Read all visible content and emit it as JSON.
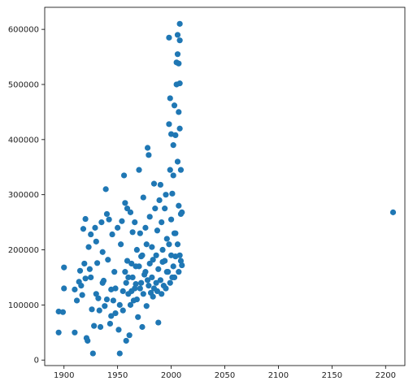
{
  "chart_data": {
    "type": "scatter",
    "title": "",
    "xlabel": "",
    "ylabel": "",
    "xlim": [
      1882,
      2218
    ],
    "ylim": [
      -10000,
      640000
    ],
    "grid": false,
    "legend": null,
    "x_ticks": [
      1900,
      1950,
      2000,
      2050,
      2100,
      2150,
      2200
    ],
    "x_tick_labels": [
      "1900",
      "1950",
      "2000",
      "2050",
      "2100",
      "2150",
      "2200"
    ],
    "y_ticks": [
      0,
      100000,
      200000,
      300000,
      400000,
      500000,
      600000
    ],
    "y_tick_labels": [
      "0",
      "100000",
      "200000",
      "300000",
      "400000",
      "500000",
      "600000"
    ],
    "color": "#1f77b4",
    "series": [
      {
        "points": [
          [
            1895,
            88000
          ],
          [
            1895,
            50000
          ],
          [
            1899,
            87000
          ],
          [
            1900,
            130000
          ],
          [
            1900,
            168000
          ],
          [
            1910,
            50000
          ],
          [
            1910,
            128000
          ],
          [
            1912,
            108000
          ],
          [
            1914,
            142000
          ],
          [
            1915,
            162000
          ],
          [
            1916,
            135000
          ],
          [
            1917,
            118000
          ],
          [
            1918,
            238000
          ],
          [
            1919,
            175000
          ],
          [
            1920,
            256000
          ],
          [
            1920,
            148000
          ],
          [
            1921,
            40000
          ],
          [
            1922,
            35000
          ],
          [
            1923,
            205000
          ],
          [
            1924,
            165000
          ],
          [
            1925,
            228000
          ],
          [
            1926,
            92000
          ],
          [
            1927,
            12000
          ],
          [
            1928,
            62000
          ],
          [
            1929,
            240000
          ],
          [
            1930,
            215000
          ],
          [
            1931,
            176000
          ],
          [
            1932,
            112000
          ],
          [
            1934,
            60000
          ],
          [
            1935,
            250000
          ],
          [
            1936,
            196000
          ],
          [
            1937,
            144000
          ],
          [
            1938,
            98000
          ],
          [
            1939,
            310000
          ],
          [
            1940,
            265000
          ],
          [
            1941,
            182000
          ],
          [
            1942,
            255000
          ],
          [
            1943,
            66000
          ],
          [
            1944,
            128000
          ],
          [
            1945,
            228000
          ],
          [
            1946,
            108000
          ],
          [
            1947,
            160000
          ],
          [
            1948,
            85000
          ],
          [
            1950,
            240000
          ],
          [
            1951,
            55000
          ],
          [
            1952,
            12000
          ],
          [
            1953,
            210000
          ],
          [
            1954,
            252000
          ],
          [
            1955,
            125000
          ],
          [
            1956,
            335000
          ],
          [
            1957,
            285000
          ],
          [
            1958,
            35000
          ],
          [
            1959,
            275000
          ],
          [
            1960,
            150000
          ],
          [
            1961,
            45000
          ],
          [
            1962,
            268000
          ],
          [
            1963,
            175000
          ],
          [
            1964,
            232000
          ],
          [
            1965,
            108000
          ],
          [
            1966,
            250000
          ],
          [
            1967,
            138000
          ],
          [
            1968,
            200000
          ],
          [
            1969,
            78000
          ],
          [
            1970,
            345000
          ],
          [
            1971,
            230000
          ],
          [
            1972,
            188000
          ],
          [
            1973,
            60000
          ],
          [
            1974,
            295000
          ],
          [
            1975,
            155000
          ],
          [
            1976,
            240000
          ],
          [
            1977,
            98000
          ],
          [
            1978,
            385000
          ],
          [
            1979,
            372000
          ],
          [
            1980,
            260000
          ],
          [
            1981,
            122000
          ],
          [
            1982,
            205000
          ],
          [
            1983,
            182000
          ],
          [
            1984,
            320000
          ],
          [
            1985,
            275000
          ],
          [
            1986,
            140000
          ],
          [
            1987,
            235000
          ],
          [
            1988,
            68000
          ],
          [
            1989,
            290000
          ],
          [
            1990,
            318000
          ],
          [
            1991,
            250000
          ],
          [
            1992,
            178000
          ],
          [
            1993,
            135000
          ],
          [
            1994,
            275000
          ],
          [
            1995,
            300000
          ],
          [
            1996,
            220000
          ],
          [
            1997,
            160000
          ],
          [
            1998,
            428000
          ],
          [
            1998,
            585000
          ],
          [
            1999,
            345000
          ],
          [
            1999,
            475000
          ],
          [
            2000,
            410000
          ],
          [
            2000,
            255000
          ],
          [
            2001,
            302000
          ],
          [
            2001,
            150000
          ],
          [
            2002,
            335000
          ],
          [
            2002,
            390000
          ],
          [
            2003,
            462000
          ],
          [
            2003,
            230000
          ],
          [
            2004,
            408000
          ],
          [
            2004,
            188000
          ],
          [
            2005,
            540000
          ],
          [
            2005,
            500000
          ],
          [
            2006,
            590000
          ],
          [
            2006,
            555000
          ],
          [
            2006,
            360000
          ],
          [
            2007,
            538000
          ],
          [
            2007,
            450000
          ],
          [
            2007,
            280000
          ],
          [
            2008,
            610000
          ],
          [
            2008,
            580000
          ],
          [
            2008,
            502000
          ],
          [
            2008,
            420000
          ],
          [
            2009,
            345000
          ],
          [
            2009,
            265000
          ],
          [
            2009,
            180000
          ],
          [
            2010,
            268000
          ],
          [
            2010,
            172000
          ],
          [
            2207,
            268000
          ],
          [
            1925,
            150000
          ],
          [
            1930,
            120000
          ],
          [
            1933,
            90000
          ],
          [
            1936,
            140000
          ],
          [
            1940,
            110000
          ],
          [
            1944,
            80000
          ],
          [
            1948,
            130000
          ],
          [
            1952,
            100000
          ],
          [
            1955,
            90000
          ],
          [
            1958,
            140000
          ],
          [
            1960,
            120000
          ],
          [
            1962,
            100000
          ],
          [
            1964,
            150000
          ],
          [
            1966,
            130000
          ],
          [
            1968,
            110000
          ],
          [
            1970,
            170000
          ],
          [
            1972,
            140000
          ],
          [
            1974,
            120000
          ],
          [
            1976,
            160000
          ],
          [
            1978,
            145000
          ],
          [
            1980,
            175000
          ],
          [
            1982,
            150000
          ],
          [
            1984,
            130000
          ],
          [
            1986,
            190000
          ],
          [
            1988,
            165000
          ],
          [
            1990,
            145000
          ],
          [
            1992,
            200000
          ],
          [
            1994,
            180000
          ],
          [
            1996,
            160000
          ],
          [
            1998,
            210000
          ],
          [
            2000,
            190000
          ],
          [
            2002,
            170000
          ],
          [
            2004,
            230000
          ],
          [
            2006,
            210000
          ],
          [
            2008,
            190000
          ],
          [
            1957,
            160000
          ],
          [
            1959,
            180000
          ],
          [
            1963,
            125000
          ],
          [
            1967,
            170000
          ],
          [
            1971,
            130000
          ],
          [
            1973,
            190000
          ],
          [
            1977,
            210000
          ],
          [
            1979,
            135000
          ],
          [
            1983,
            115000
          ],
          [
            1987,
            125000
          ],
          [
            1991,
            120000
          ],
          [
            1995,
            130000
          ],
          [
            1999,
            140000
          ],
          [
            2003,
            150000
          ],
          [
            2007,
            160000
          ]
        ]
      }
    ]
  }
}
